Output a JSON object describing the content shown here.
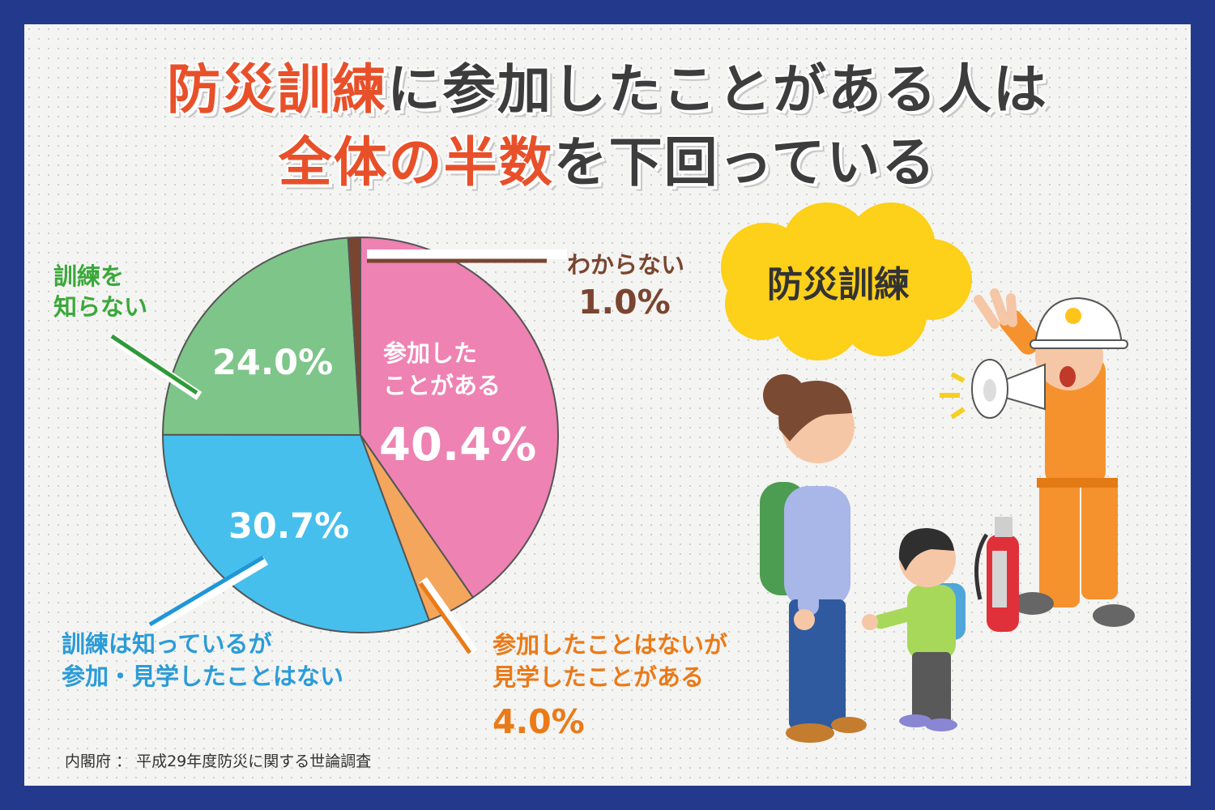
{
  "title": {
    "line1_highlight": "防災訓練",
    "line1_rest": "に参加したことがある人は",
    "line2_highlight": "全体の半数",
    "line2_rest": "を下回っている"
  },
  "bubble_text": "防災訓練",
  "source": "内閣府 ： 平成29年度防災に関する世論調査",
  "colors": {
    "participated": "#ee82b2",
    "observed": "#f4a65c",
    "known_not_participated": "#47bfed",
    "unknown_training": "#7ec58a",
    "dont_know": "#7a4530",
    "title_accent": "#e8502a",
    "border": "#233a8c"
  },
  "chart_data": {
    "type": "pie",
    "start": "12 o'clock, clockwise",
    "slices": [
      {
        "label_lines": [
          "参加した",
          "ことがある"
        ],
        "value": 40.4,
        "value_text": "40.4%",
        "color": "#ee82b2"
      },
      {
        "label_lines": [
          "参加したことはないが",
          "見学したことがある"
        ],
        "value": 4.0,
        "value_text": "4.0%",
        "color": "#f4a65c"
      },
      {
        "label_lines": [
          "訓練は知っているが",
          "参加・見学したことはない"
        ],
        "value": 30.7,
        "value_text": "30.7%",
        "color": "#47bfed"
      },
      {
        "label_lines": [
          "訓練を",
          "知らない"
        ],
        "value": 24.0,
        "value_text": "24.0%",
        "color": "#7ec58a"
      },
      {
        "label_lines": [
          "わからない"
        ],
        "value": 1.0,
        "value_text": "1.0%",
        "color": "#7a4530"
      }
    ]
  }
}
